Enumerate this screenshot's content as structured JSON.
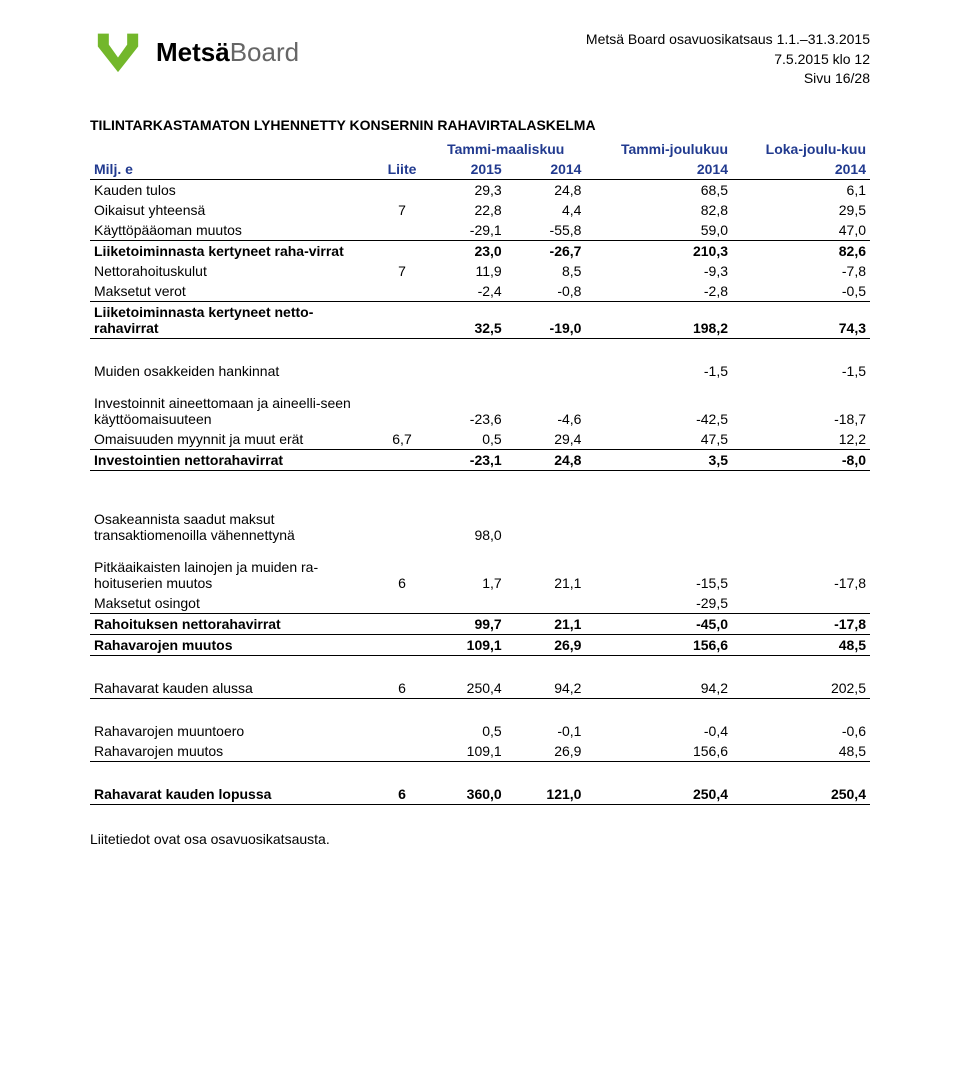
{
  "header": {
    "logo_bold": "Metsä",
    "logo_light": "Board",
    "meta_line1": "Metsä Board osavuosikatsaus 1.1.–31.3.2015",
    "meta_line2": "7.5.2015 klo 12",
    "meta_line3": "Sivu 16/28"
  },
  "section_title": "TILINTARKASTAMATON LYHENNETTY KONSERNIN RAHAVIRTALASKELMA",
  "columns": {
    "label": "Milj. e",
    "liite": "Liite",
    "grp1": "Tammi-maaliskuu",
    "grp2": "Tammi-joulukuu",
    "grp3": "Loka-joulu-kuu",
    "y2015": "2015",
    "y2014a": "2014",
    "y2014b": "2014",
    "y2014c": "2014"
  },
  "rows": [
    {
      "label": "Kauden tulos",
      "liite": "",
      "c1": "29,3",
      "c2": "24,8",
      "c3": "68,5",
      "c4": "6,1",
      "bold": false,
      "border": false
    },
    {
      "label": "Oikaisut yhteensä",
      "liite": "7",
      "c1": "22,8",
      "c2": "4,4",
      "c3": "82,8",
      "c4": "29,5",
      "bold": false,
      "border": false
    },
    {
      "label": "Käyttöpääoman muutos",
      "liite": "",
      "c1": "-29,1",
      "c2": "-55,8",
      "c3": "59,0",
      "c4": "47,0",
      "bold": false,
      "border": true
    },
    {
      "label": "Liiketoiminnasta kertyneet raha-virrat",
      "liite": "",
      "c1": "23,0",
      "c2": "-26,7",
      "c3": "210,3",
      "c4": "82,6",
      "bold": true,
      "border": false
    },
    {
      "label": "Nettorahoituskulut",
      "liite": "7",
      "c1": "11,9",
      "c2": "8,5",
      "c3": "-9,3",
      "c4": "-7,8",
      "bold": false,
      "border": false
    },
    {
      "label": "Maksetut verot",
      "liite": "",
      "c1": "-2,4",
      "c2": "-0,8",
      "c3": "-2,8",
      "c4": "-0,5",
      "bold": false,
      "border": true
    },
    {
      "label": "Liiketoiminnasta kertyneet netto-rahavirrat",
      "liite": "",
      "c1": "32,5",
      "c2": "-19,0",
      "c3": "198,2",
      "c4": "74,3",
      "bold": true,
      "border": true
    }
  ],
  "rows2": [
    {
      "label": "Muiden osakkeiden hankinnat",
      "liite": "",
      "c1": "",
      "c2": "",
      "c3": "-1,5",
      "c4": "-1,5",
      "bold": false,
      "border": false
    },
    {
      "label": "",
      "liite": "",
      "c1": "",
      "c2": "",
      "c3": "",
      "c4": "",
      "bold": false,
      "border": false,
      "spacer": true
    },
    {
      "label": "Investoinnit aineettomaan ja aineelli-seen käyttöomaisuuteen",
      "liite": "",
      "c1": "-23,6",
      "c2": "-4,6",
      "c3": "-42,5",
      "c4": "-18,7",
      "bold": false,
      "border": false
    },
    {
      "label": "Omaisuuden myynnit ja muut erät",
      "liite": "6,7",
      "c1": "0,5",
      "c2": "29,4",
      "c3": "47,5",
      "c4": "12,2",
      "bold": false,
      "border": true
    },
    {
      "label": "Investointien nettorahavirrat",
      "liite": "",
      "c1": "-23,1",
      "c2": "24,8",
      "c3": "3,5",
      "c4": "-8,0",
      "bold": true,
      "border": true
    }
  ],
  "rows3": [
    {
      "label": "Osakeannista saadut maksut transaktiomenoilla vähennettynä",
      "liite": "",
      "c1": "98,0",
      "c2": "",
      "c3": "",
      "c4": "",
      "bold": false,
      "border": false
    },
    {
      "label": "",
      "liite": "",
      "c1": "",
      "c2": "",
      "c3": "",
      "c4": "",
      "bold": false,
      "border": false,
      "spacer": true
    },
    {
      "label": "Pitkäaikaisten lainojen ja muiden ra-hoituserien muutos",
      "liite": "6",
      "c1": "1,7",
      "c2": "21,1",
      "c3": "-15,5",
      "c4": "-17,8",
      "bold": false,
      "border": false
    },
    {
      "label": "Maksetut osingot",
      "liite": "",
      "c1": "",
      "c2": "",
      "c3": "-29,5",
      "c4": "",
      "bold": false,
      "border": true
    },
    {
      "label": "Rahoituksen nettorahavirrat",
      "liite": "",
      "c1": "99,7",
      "c2": "21,1",
      "c3": "-45,0",
      "c4": "-17,8",
      "bold": true,
      "border": true
    },
    {
      "label": "Rahavarojen muutos",
      "liite": "",
      "c1": "109,1",
      "c2": "26,9",
      "c3": "156,6",
      "c4": "48,5",
      "bold": true,
      "border": true
    }
  ],
  "rows4": [
    {
      "label": "Rahavarat kauden alussa",
      "liite": "6",
      "c1": "250,4",
      "c2": "94,2",
      "c3": "94,2",
      "c4": "202,5",
      "bold": false,
      "border": true
    }
  ],
  "rows5": [
    {
      "label": "Rahavarojen muuntoero",
      "liite": "",
      "c1": "0,5",
      "c2": "-0,1",
      "c3": "-0,4",
      "c4": "-0,6",
      "bold": false,
      "border": false
    },
    {
      "label": "Rahavarojen muutos",
      "liite": "",
      "c1": "109,1",
      "c2": "26,9",
      "c3": "156,6",
      "c4": "48,5",
      "bold": false,
      "border": true
    }
  ],
  "rows6": [
    {
      "label": "Rahavarat kauden lopussa",
      "liite": "6",
      "c1": "360,0",
      "c2": "121,0",
      "c3": "250,4",
      "c4": "250,4",
      "bold": true,
      "border": true
    }
  ],
  "footnote": "Liitetiedot ovat osa osavuosikatsausta.",
  "colors": {
    "accent_green": "#73b72b",
    "header_text": "#213a8f",
    "logo_light": "#666666"
  }
}
